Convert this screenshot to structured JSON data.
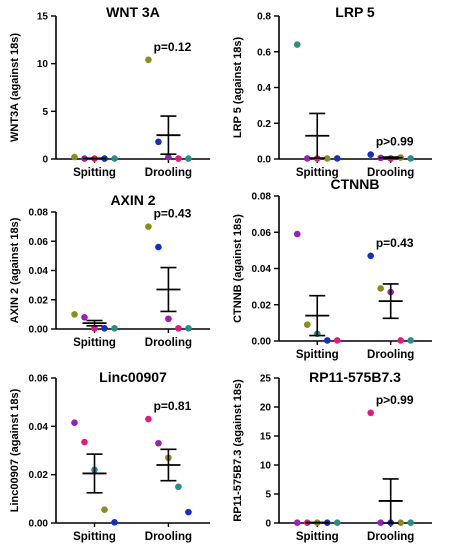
{
  "colors": {
    "axis": "#000000",
    "point_palette": [
      "#9b1fb5",
      "#e8177e",
      "#1430c2",
      "#2c8c88",
      "#8b8c1c"
    ]
  },
  "chart_data": [
    {
      "type": "scatter",
      "title": "WNT 3A",
      "ylabel": "WNT3A (against 18s)",
      "ylim": [
        0,
        15
      ],
      "yticks": [
        "0",
        "5",
        "10",
        "15"
      ],
      "categories": [
        "Spitting",
        "Drooling"
      ],
      "annotation": "p=0.12",
      "groups": [
        {
          "name": "Spitting",
          "mean": 0.05,
          "sem": 0.03,
          "points": [
            {
              "y": 0.2,
              "color": "#8b8c1c"
            },
            {
              "y": 0.05,
              "color": "#9b1fb5"
            },
            {
              "y": 0.05,
              "color": "#e8177e"
            },
            {
              "y": 0.05,
              "color": "#1430c2"
            },
            {
              "y": 0.05,
              "color": "#2c8c88"
            }
          ]
        },
        {
          "name": "Drooling",
          "mean": 2.5,
          "sem": 2.0,
          "points": [
            {
              "y": 10.4,
              "color": "#8b8c1c"
            },
            {
              "y": 1.8,
              "color": "#1430c2"
            },
            {
              "y": 0.2,
              "color": "#9b1fb5"
            },
            {
              "y": 0.05,
              "color": "#e8177e"
            },
            {
              "y": 0.05,
              "color": "#2c8c88"
            }
          ]
        }
      ]
    },
    {
      "type": "scatter",
      "title": "LRP 5",
      "ylabel": "LRP 5 (against 18s)",
      "ylim": [
        0,
        0.8
      ],
      "yticks": [
        "0.0",
        "0.2",
        "0.4",
        "0.6",
        "0.8"
      ],
      "categories": [
        "Spitting",
        "Drooling"
      ],
      "annotation": "p>0.99",
      "groups": [
        {
          "name": "Spitting",
          "mean": 0.13,
          "sem": 0.125,
          "points": [
            {
              "y": 0.64,
              "color": "#2c8c88"
            },
            {
              "y": 0.003,
              "color": "#9b1fb5"
            },
            {
              "y": 0.003,
              "color": "#e8177e"
            },
            {
              "y": 0.003,
              "color": "#8b8c1c"
            },
            {
              "y": 0.003,
              "color": "#1430c2"
            }
          ]
        },
        {
          "name": "Drooling",
          "mean": 0.007,
          "sem": 0.004,
          "points": [
            {
              "y": 0.025,
              "color": "#1430c2"
            },
            {
              "y": 0.006,
              "color": "#9b1fb5"
            },
            {
              "y": 0.003,
              "color": "#e8177e"
            },
            {
              "y": 0.008,
              "color": "#8b8c1c"
            },
            {
              "y": 0.003,
              "color": "#2c8c88"
            }
          ]
        }
      ]
    },
    {
      "type": "scatter",
      "title": "AXIN 2",
      "ylabel": "AXIN 2 (against 18s)",
      "ylim": [
        0,
        0.08
      ],
      "yticks": [
        "0.00",
        "0.02",
        "0.04",
        "0.06",
        "0.08"
      ],
      "categories": [
        "Spitting",
        "Drooling"
      ],
      "annotation": "p=0.43",
      "groups": [
        {
          "name": "Spitting",
          "mean": 0.004,
          "sem": 0.0018,
          "points": [
            {
              "y": 0.01,
              "color": "#8b8c1c"
            },
            {
              "y": 0.008,
              "color": "#9b1fb5"
            },
            {
              "y": 0.0005,
              "color": "#e8177e"
            },
            {
              "y": 0.0005,
              "color": "#1430c2"
            },
            {
              "y": 0.0005,
              "color": "#2c8c88"
            }
          ]
        },
        {
          "name": "Drooling",
          "mean": 0.027,
          "sem": 0.015,
          "points": [
            {
              "y": 0.07,
              "color": "#8b8c1c"
            },
            {
              "y": 0.056,
              "color": "#1430c2"
            },
            {
              "y": 0.007,
              "color": "#9b1fb5"
            },
            {
              "y": 0.0005,
              "color": "#e8177e"
            },
            {
              "y": 0.0005,
              "color": "#2c8c88"
            }
          ]
        }
      ]
    },
    {
      "type": "scatter",
      "title": "CTNNB",
      "ylabel": "CTNNB (against 18s)",
      "ylim": [
        0,
        0.08
      ],
      "yticks": [
        "0.00",
        "0.02",
        "0.04",
        "0.06",
        "0.08"
      ],
      "categories": [
        "Spitting",
        "Drooling"
      ],
      "annotation": "p=0.43",
      "groups": [
        {
          "name": "Spitting",
          "mean": 0.014,
          "sem": 0.011,
          "points": [
            {
              "y": 0.059,
              "color": "#9b1fb5"
            },
            {
              "y": 0.009,
              "color": "#8b8c1c"
            },
            {
              "y": 0.004,
              "color": "#2c8c88"
            },
            {
              "y": 0.0003,
              "color": "#1430c2"
            },
            {
              "y": 0.0003,
              "color": "#e8177e"
            }
          ]
        },
        {
          "name": "Drooling",
          "mean": 0.022,
          "sem": 0.0095,
          "points": [
            {
              "y": 0.047,
              "color": "#1430c2"
            },
            {
              "y": 0.029,
              "color": "#8b8c1c"
            },
            {
              "y": 0.027,
              "color": "#9b1fb5"
            },
            {
              "y": 0.0003,
              "color": "#e8177e"
            },
            {
              "y": 0.0003,
              "color": "#2c8c88"
            }
          ]
        }
      ]
    },
    {
      "type": "scatter",
      "title": "Linc00907",
      "ylabel": "Linc00907 (against 18s)",
      "ylim": [
        0,
        0.06
      ],
      "yticks": [
        "0.00",
        "0.02",
        "0.04",
        "0.06"
      ],
      "categories": [
        "Spitting",
        "Drooling"
      ],
      "annotation": "p=0.81",
      "groups": [
        {
          "name": "Spitting",
          "mean": 0.0205,
          "sem": 0.008,
          "points": [
            {
              "y": 0.0415,
              "color": "#9b1fb5"
            },
            {
              "y": 0.0335,
              "color": "#e8177e"
            },
            {
              "y": 0.022,
              "color": "#2c8c88"
            },
            {
              "y": 0.0055,
              "color": "#8b8c1c"
            },
            {
              "y": 0.0003,
              "color": "#1430c2"
            }
          ]
        },
        {
          "name": "Drooling",
          "mean": 0.024,
          "sem": 0.0065,
          "points": [
            {
              "y": 0.043,
              "color": "#e8177e"
            },
            {
              "y": 0.033,
              "color": "#9b1fb5"
            },
            {
              "y": 0.027,
              "color": "#8b8c1c"
            },
            {
              "y": 0.015,
              "color": "#2c8c88"
            },
            {
              "y": 0.0045,
              "color": "#1430c2"
            }
          ]
        }
      ]
    },
    {
      "type": "scatter",
      "title": "RP11-575B7.3",
      "ylabel": "RP11-575B7.3 (against 18s)",
      "ylim": [
        0,
        25
      ],
      "yticks": [
        "0",
        "5",
        "10",
        "15",
        "20",
        "25"
      ],
      "categories": [
        "Spitting",
        "Drooling"
      ],
      "annotation": "p>0.99",
      "groups": [
        {
          "name": "Spitting",
          "mean": 0.05,
          "sem": 0.03,
          "points": [
            {
              "y": 0.05,
              "color": "#9b1fb5"
            },
            {
              "y": 0.05,
              "color": "#e8177e"
            },
            {
              "y": 0.05,
              "color": "#8b8c1c"
            },
            {
              "y": 0.05,
              "color": "#1430c2"
            },
            {
              "y": 0.05,
              "color": "#2c8c88"
            }
          ]
        },
        {
          "name": "Drooling",
          "mean": 3.8,
          "sem": 3.8,
          "points": [
            {
              "y": 19.0,
              "color": "#e8177e"
            },
            {
              "y": 0.05,
              "color": "#9b1fb5"
            },
            {
              "y": 0.05,
              "color": "#1430c2"
            },
            {
              "y": 0.05,
              "color": "#8b8c1c"
            },
            {
              "y": 0.05,
              "color": "#2c8c88"
            }
          ]
        }
      ]
    }
  ]
}
